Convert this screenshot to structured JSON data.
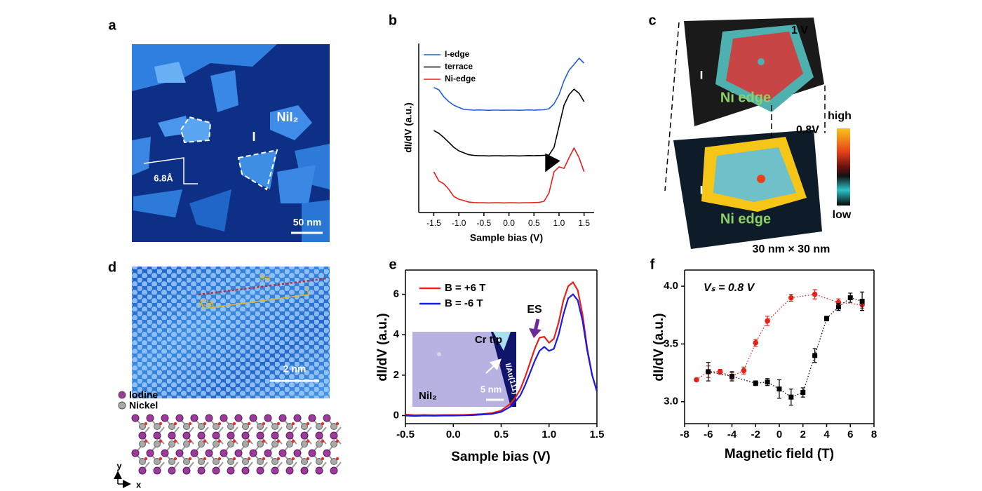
{
  "image_a": {
    "panel": "a",
    "labels": [
      "NiI₂",
      "I",
      "6.8Å",
      "50 nm"
    ]
  },
  "image_c": {
    "panel": "c",
    "labels": [
      "1 V",
      "I",
      "Ni edge",
      "0.8V",
      "I",
      "Ni edge",
      "high",
      "low",
      "30 nm × 30 nm"
    ]
  },
  "image_d": {
    "panel": "d",
    "labels": [
      "9a",
      "√3a",
      "2 nm"
    ],
    "legend": [
      "Iodine",
      "Nickel"
    ],
    "axes": [
      "y",
      "x"
    ]
  },
  "chart_data": [
    {
      "panel": "b",
      "type": "line",
      "x_label": "Sample bias (V)",
      "y_label": "dI/dV (a.u.)",
      "legend": "upper left",
      "x": [
        -1.5,
        -1.4,
        -1.3,
        -1.2,
        -1.1,
        -1.0,
        -0.9,
        -0.8,
        -0.7,
        -0.6,
        -0.5,
        -0.4,
        -0.3,
        -0.2,
        -0.1,
        0,
        0.1,
        0.2,
        0.3,
        0.4,
        0.5,
        0.6,
        0.7,
        0.8,
        0.9,
        1.0,
        1.1,
        1.2,
        1.3,
        1.4,
        1.5
      ],
      "xlim": [
        -1.8,
        1.7
      ],
      "ylim": [
        0,
        10
      ],
      "xticks": [
        -1.5,
        {
          "value": -1,
          "label": "-1.0"
        },
        -0.5,
        {
          "value": 0,
          "label": "0.0"
        },
        0.5,
        {
          "value": 1,
          "label": "1.0"
        },
        1.5
      ],
      "series": [
        {
          "name": "I-edge",
          "color": "#1f5fd6",
          "values": [
            7.4,
            7.26,
            6.85,
            6.56,
            6.35,
            6.22,
            6.1,
            6.08,
            6.06,
            6.07,
            6.06,
            6.05,
            6.06,
            6.06,
            6.05,
            6.06,
            6.06,
            6.05,
            6.06,
            6.07,
            6.06,
            6.07,
            6.08,
            6.14,
            6.43,
            6.97,
            7.8,
            8.42,
            8.76,
            9.13,
            8.84
          ]
        },
        {
          "name": "terrace",
          "color": "#000000",
          "values": [
            4.85,
            4.69,
            4.44,
            4.15,
            3.86,
            3.65,
            3.53,
            3.42,
            3.38,
            3.36,
            3.36,
            3.35,
            3.36,
            3.36,
            3.35,
            3.36,
            3.36,
            3.35,
            3.36,
            3.37,
            3.36,
            3.37,
            3.38,
            3.4,
            3.86,
            5.1,
            6.35,
            6.97,
            7.3,
            7.05,
            6.56
          ]
        },
        {
          "name": "Ni-edge",
          "color": "#e8201c",
          "values": [
            2.41,
            1.87,
            1.7,
            1.37,
            0.95,
            0.79,
            0.71,
            0.62,
            0.59,
            0.58,
            0.58,
            0.57,
            0.58,
            0.58,
            0.57,
            0.58,
            0.58,
            0.57,
            0.58,
            0.58,
            0.59,
            0.6,
            0.66,
            1.16,
            2.41,
            2.7,
            2.61,
            3.24,
            3.82,
            3.24,
            2.41
          ]
        }
      ]
    },
    {
      "panel": "e",
      "type": "line",
      "x_label": "Sample bias (V)",
      "y_label": "dI/dV (a.u.)",
      "legend": "upper left",
      "annotations": [
        "ES"
      ],
      "inset": {
        "labels": [
          "Cr tip",
          "NiI₂",
          "5 nm",
          "I/Au(111)"
        ]
      },
      "x": [
        -0.5,
        -0.4,
        -0.3,
        -0.2,
        -0.1,
        0,
        0.1,
        0.2,
        0.3,
        0.4,
        0.5,
        0.6,
        0.65,
        0.7,
        0.75,
        0.8,
        0.85,
        0.9,
        0.95,
        1.0,
        1.05,
        1.1,
        1.15,
        1.2,
        1.25,
        1.3,
        1.35,
        1.4,
        1.45,
        1.5
      ],
      "xlim": [
        -0.5,
        1.5
      ],
      "ylim": [
        -0.4,
        7.2
      ],
      "xticks": [
        -0.5,
        {
          "value": 0,
          "label": "0.0"
        },
        0.5,
        {
          "value": 1,
          "label": "1.0"
        },
        1.5
      ],
      "yticks": [
        0,
        2,
        4,
        6
      ],
      "series": [
        {
          "name": "B = +6 T",
          "color": "#e8201c",
          "values": [
            0.05,
            0.02,
            0.03,
            0.02,
            0.03,
            0.03,
            0.03,
            0.05,
            0.08,
            0.12,
            0.25,
            0.6,
            0.9,
            1.3,
            1.9,
            2.6,
            3.3,
            3.85,
            3.9,
            3.6,
            3.8,
            4.6,
            5.7,
            6.4,
            6.6,
            6.2,
            5.0,
            3.3,
            2.0,
            1.2
          ]
        },
        {
          "name": "B = -6 T",
          "color": "#1a1ae6",
          "values": [
            0.0,
            -0.02,
            0.0,
            -0.01,
            0.0,
            0.0,
            0.01,
            0.02,
            0.05,
            0.08,
            0.18,
            0.45,
            0.7,
            1.0,
            1.5,
            2.1,
            2.7,
            3.2,
            3.4,
            3.2,
            3.3,
            4.0,
            5.0,
            5.8,
            6.0,
            5.7,
            4.7,
            3.2,
            2.0,
            1.2
          ]
        }
      ]
    },
    {
      "panel": "f",
      "type": "scatter",
      "x_label": "Magnetic field (T)",
      "y_label": "dI/dV (a.u.)",
      "line_style": "dotted",
      "annotations": [
        "Vₛ = 0.8 V"
      ],
      "xlim": [
        -8,
        8
      ],
      "ylim": [
        2.81,
        4.14
      ],
      "xticks": [
        -8,
        -6,
        -4,
        -2,
        0,
        2,
        4,
        6,
        8
      ],
      "yticks": [
        {
          "value": 3,
          "label": "3.0"
        },
        3.5,
        {
          "value": 4,
          "label": "4.0"
        }
      ],
      "series": [
        {
          "color": "#e8201c",
          "marker": "circle",
          "x": [
            -7,
            -6,
            -5,
            -4,
            -3,
            -2,
            -1,
            1,
            3,
            5,
            7
          ],
          "values": [
            3.19,
            3.26,
            3.26,
            3.22,
            3.27,
            3.51,
            3.7,
            3.9,
            3.93,
            3.86,
            3.84
          ],
          "errors": [
            0.01,
            0.05,
            0.02,
            0.03,
            0.03,
            0.03,
            0.04,
            0.03,
            0.04,
            0.03,
            0.03
          ]
        },
        {
          "color": "#000000",
          "marker": "square",
          "x": [
            -6,
            -4,
            -2,
            -1,
            0,
            1,
            2,
            3,
            4,
            5,
            6,
            7
          ],
          "values": [
            3.26,
            3.22,
            3.16,
            3.17,
            3.11,
            3.04,
            3.08,
            3.4,
            3.72,
            3.82,
            3.9,
            3.87
          ],
          "errors": [
            0.08,
            0.04,
            0.02,
            0.03,
            0.08,
            0.07,
            0.04,
            0.06,
            0.02,
            0.03,
            0.04,
            0.08
          ]
        }
      ]
    }
  ]
}
